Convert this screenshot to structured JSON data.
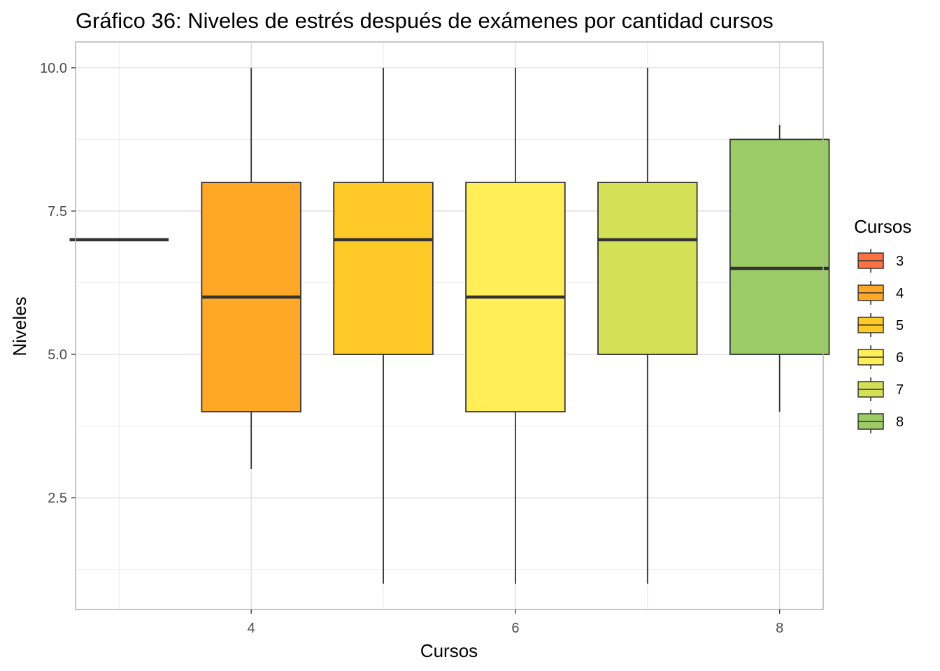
{
  "chart_data": {
    "type": "boxplot",
    "title": "Gráfico 36: Niveles de estrés después de exámenes por cantidad cursos",
    "xlabel": "Cursos",
    "ylabel": "Niveles",
    "xlim": [
      2.67,
      8.33
    ],
    "ylim": [
      0.55,
      10.45
    ],
    "x_ticks": [
      4,
      6,
      8
    ],
    "x_tick_labels": [
      "4",
      "6",
      "8"
    ],
    "y_ticks": [
      2.5,
      5.0,
      7.5,
      10.0
    ],
    "y_tick_labels": [
      "2.5",
      "5.0",
      "7.5",
      "10.0"
    ],
    "grid": true,
    "legend_title": "Cursos",
    "legend_position": "right",
    "series": [
      {
        "name": "3",
        "x": 3,
        "min": 7,
        "q1": 7,
        "median": 7,
        "q3": 7,
        "max": 7,
        "color": "#FF7043"
      },
      {
        "name": "4",
        "x": 4,
        "min": 3,
        "q1": 4,
        "median": 6,
        "q3": 8,
        "max": 10,
        "color": "#FFA726"
      },
      {
        "name": "5",
        "x": 5,
        "min": 1,
        "q1": 5,
        "median": 7,
        "q3": 8,
        "max": 10,
        "color": "#FFCA28"
      },
      {
        "name": "6",
        "x": 6,
        "min": 1,
        "q1": 4,
        "median": 6,
        "q3": 8,
        "max": 10,
        "color": "#FFEE58"
      },
      {
        "name": "7",
        "x": 7,
        "min": 1,
        "q1": 5,
        "median": 7,
        "q3": 8,
        "max": 10,
        "color": "#D4E157"
      },
      {
        "name": "8",
        "x": 8,
        "min": 4,
        "q1": 5,
        "median": 6.5,
        "q3": 8.75,
        "max": 9,
        "color": "#9CCC65"
      }
    ]
  }
}
